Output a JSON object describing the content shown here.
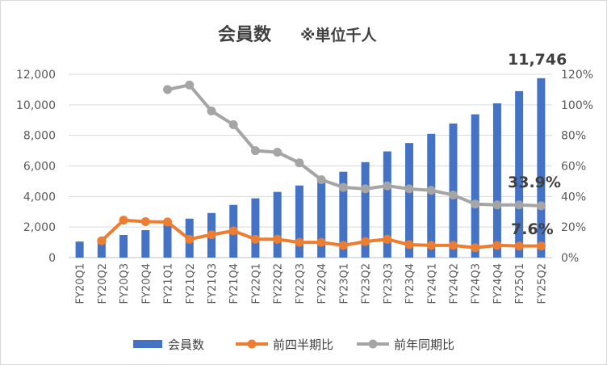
{
  "chart_data": {
    "type": "bar",
    "title": "会員数",
    "subtitle": "※単位千人",
    "categories": [
      "FY20Q1",
      "FY20Q2",
      "FY20Q3",
      "FY20Q4",
      "FY21Q1",
      "FY21Q2",
      "FY21Q3",
      "FY21Q4",
      "FY22Q1",
      "FY22Q2",
      "FY22Q3",
      "FY22Q4",
      "FY23Q1",
      "FY23Q2",
      "FY23Q3",
      "FY23Q4",
      "FY24Q1",
      "FY24Q2",
      "FY24Q3",
      "FY24Q4",
      "FY25Q1",
      "FY25Q2"
    ],
    "series": [
      {
        "name": "会員数",
        "type": "bar",
        "axis": "left",
        "color": "#4472c4",
        "values": [
          1050,
          1200,
          1480,
          1800,
          2200,
          2550,
          2920,
          3450,
          3880,
          4300,
          4720,
          5180,
          5620,
          6250,
          6950,
          7500,
          8100,
          8780,
          9380,
          10100,
          10900,
          11746
        ]
      },
      {
        "name": "前四半期比",
        "type": "line",
        "axis": "right",
        "color": "#ed7d31",
        "values": [
          null,
          11,
          24.5,
          23.5,
          23.3,
          12,
          15,
          17.5,
          12,
          12,
          10,
          10,
          8,
          10.5,
          12,
          8.5,
          8,
          8,
          6.5,
          8,
          7.6,
          7.6
        ]
      },
      {
        "name": "前年同期比",
        "type": "line",
        "axis": "right",
        "color": "#a5a5a5",
        "values": [
          null,
          null,
          null,
          null,
          110,
          113,
          96,
          87,
          70,
          69,
          62,
          51,
          46,
          45,
          47,
          45,
          44,
          41,
          35,
          34.5,
          34.5,
          33.9
        ]
      }
    ],
    "y_left": {
      "min": 0,
      "max": 12000,
      "ticks": [
        "0",
        "2,000",
        "4,000",
        "6,000",
        "8,000",
        "10,000",
        "12,000"
      ]
    },
    "y_right": {
      "min": 0,
      "max": 120,
      "ticks": [
        "0%",
        "20%",
        "40%",
        "60%",
        "80%",
        "100%",
        "120%"
      ]
    },
    "data_labels": {
      "bar_last": "11,746",
      "yoy_last": "33.9%",
      "qoq_last": "7.6%"
    },
    "grid": true,
    "legend_position": "bottom"
  }
}
